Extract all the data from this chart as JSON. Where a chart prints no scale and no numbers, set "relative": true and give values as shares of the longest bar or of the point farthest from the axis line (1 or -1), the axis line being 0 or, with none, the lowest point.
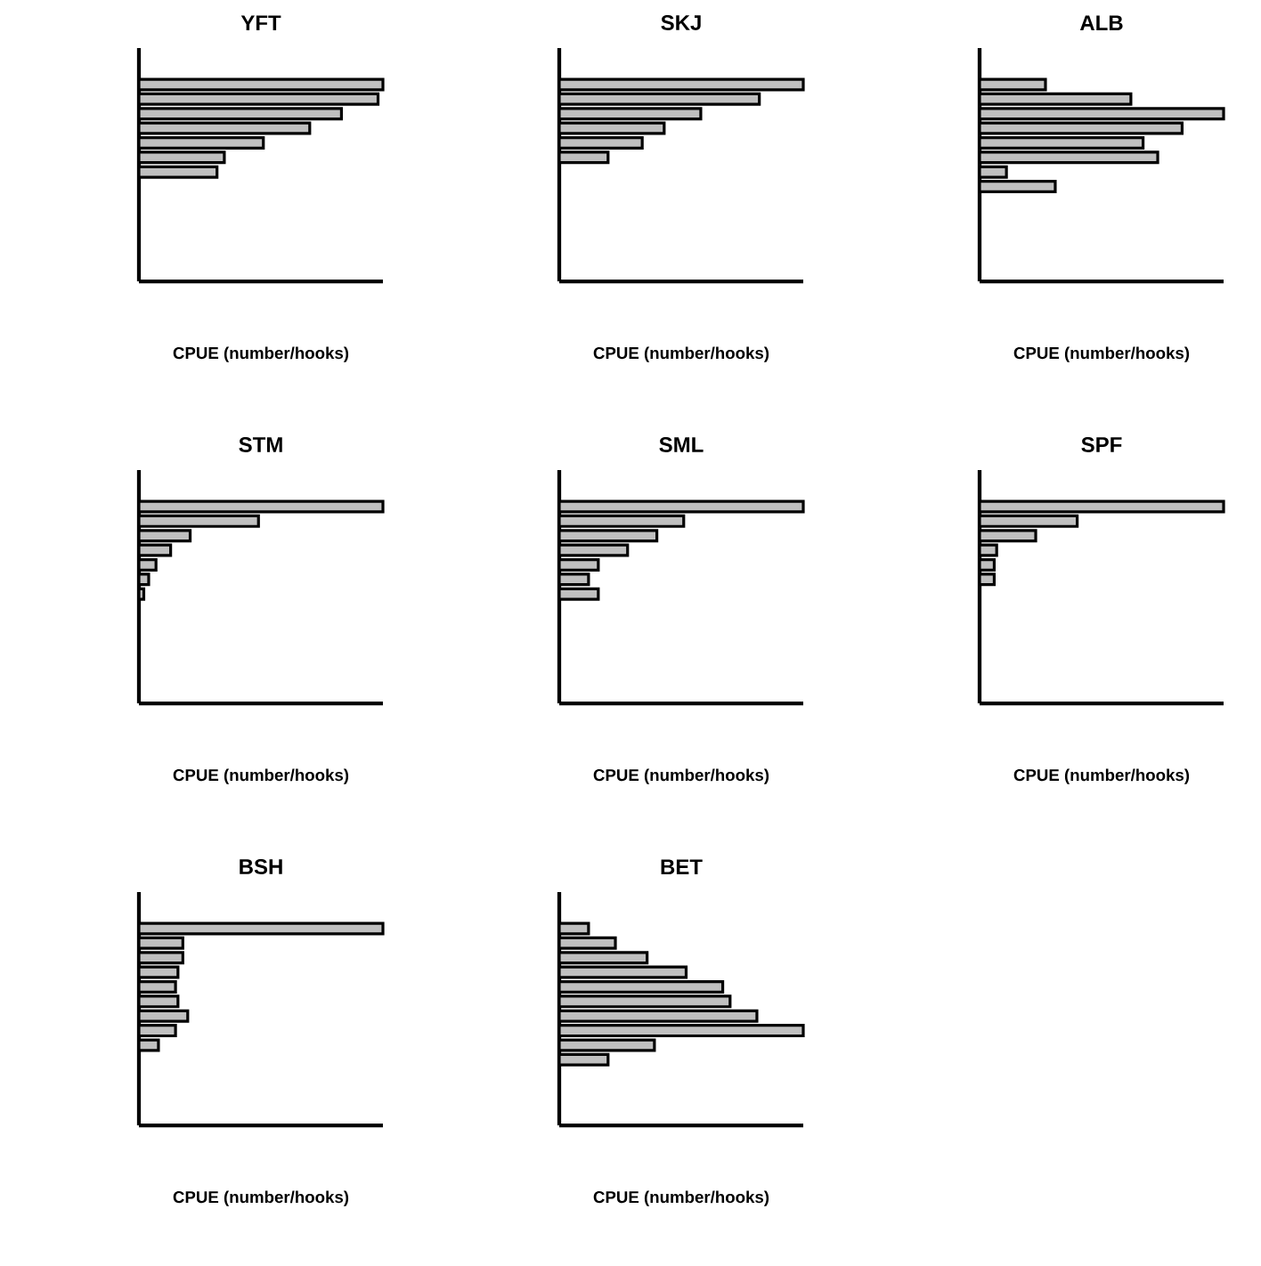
{
  "chart_data": [
    {
      "type": "bar",
      "orientation": "horizontal",
      "relative": true,
      "title": "YFT",
      "xlabel": "CPUE (number/hooks)",
      "categories": [
        null,
        null,
        null,
        null,
        null,
        null,
        null
      ],
      "color": "#c0c0c0",
      "values": [
        1,
        0.98,
        0.83,
        0.7,
        0.51,
        0.35,
        0.32
      ]
    },
    {
      "type": "bar",
      "orientation": "horizontal",
      "relative": true,
      "title": "SKJ",
      "xlabel": "CPUE (number/hooks)",
      "categories": [
        null,
        null,
        null,
        null,
        null,
        null
      ],
      "color": "#c0c0c0",
      "values": [
        1,
        0.82,
        0.58,
        0.43,
        0.34,
        0.2
      ]
    },
    {
      "type": "bar",
      "orientation": "horizontal",
      "relative": true,
      "title": "ALB",
      "xlabel": "CPUE (number/hooks)",
      "categories": [
        null,
        null,
        null,
        null,
        null,
        null,
        null,
        null
      ],
      "color": "#c0c0c0",
      "values": [
        0.27,
        0.62,
        1,
        0.83,
        0.67,
        0.73,
        0.11,
        0.31
      ]
    },
    {
      "type": "bar",
      "orientation": "horizontal",
      "relative": true,
      "title": "STM",
      "xlabel": "CPUE (number/hooks)",
      "categories": [
        null,
        null,
        null,
        null,
        null,
        null,
        null
      ],
      "color": "#c0c0c0",
      "values": [
        1,
        0.49,
        0.21,
        0.13,
        0.07,
        0.04,
        0.02
      ]
    },
    {
      "type": "bar",
      "orientation": "horizontal",
      "relative": true,
      "title": "SML",
      "xlabel": "CPUE (number/hooks)",
      "categories": [
        null,
        null,
        null,
        null,
        null,
        null,
        null
      ],
      "color": "#c0c0c0",
      "values": [
        1,
        0.51,
        0.4,
        0.28,
        0.16,
        0.12,
        0.16
      ]
    },
    {
      "type": "bar",
      "orientation": "horizontal",
      "relative": true,
      "title": "SPF",
      "xlabel": "CPUE (number/hooks)",
      "categories": [
        null,
        null,
        null,
        null,
        null,
        null
      ],
      "color": "#c0c0c0",
      "values": [
        1,
        0.4,
        0.23,
        0.07,
        0.06,
        0.06
      ]
    },
    {
      "type": "bar",
      "orientation": "horizontal",
      "relative": true,
      "title": "BSH",
      "xlabel": "CPUE (number/hooks)",
      "categories": [
        null,
        null,
        null,
        null,
        null,
        null,
        null,
        null,
        null
      ],
      "color": "#c0c0c0",
      "values": [
        1,
        0.18,
        0.18,
        0.16,
        0.15,
        0.16,
        0.2,
        0.15,
        0.08
      ]
    },
    {
      "type": "bar",
      "orientation": "horizontal",
      "relative": true,
      "title": "BET",
      "xlabel": "CPUE (number/hooks)",
      "categories": [
        null,
        null,
        null,
        null,
        null,
        null,
        null,
        null,
        null,
        null
      ],
      "color": "#c0c0c0",
      "values": [
        0.12,
        0.23,
        0.36,
        0.52,
        0.67,
        0.7,
        0.81,
        1,
        0.39,
        0.2
      ]
    }
  ]
}
